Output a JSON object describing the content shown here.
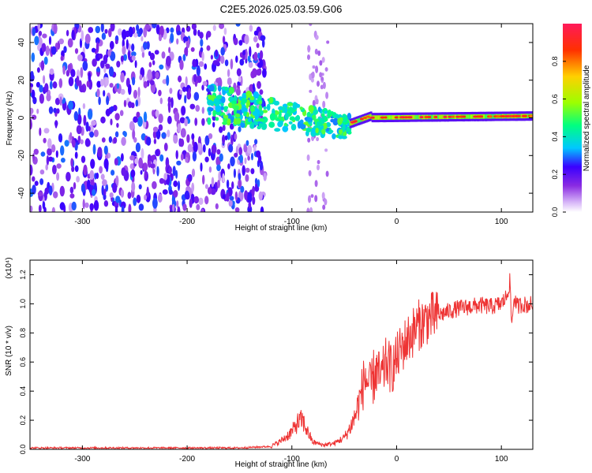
{
  "title": "C2E5.2026.025.03.59.G06",
  "chart_data": [
    {
      "type": "heatmap",
      "name": "spectrogram",
      "xlabel": "Height of straight line (km)",
      "ylabel": "Frequency (Hz)",
      "xlim": [
        -350,
        130
      ],
      "ylim": [
        -50,
        50
      ],
      "xticks": [
        -300,
        -200,
        -100,
        0,
        100
      ],
      "xtick_labels": [
        "-300",
        "-200",
        "-100",
        "0",
        "100"
      ],
      "yticks": [
        -40,
        -20,
        0,
        20,
        40
      ],
      "ytick_labels": [
        "-40",
        "-20",
        "0",
        "20",
        "40"
      ],
      "colorbar": {
        "label": "Normalized spectral amplitude",
        "range": [
          0,
          1
        ],
        "ticks": [
          0,
          0.2,
          0.4,
          0.6,
          0.8
        ],
        "tick_labels": [
          "0.0",
          "0.2",
          "0.4",
          "0.6",
          "0.8"
        ],
        "colors": [
          "#ffffff",
          "#d8b8f8",
          "#8a2be2",
          "#3a00ff",
          "#00c8ff",
          "#00ff80",
          "#9cff00",
          "#ffd000",
          "#ff3000",
          "#ff1a5a"
        ]
      },
      "regions": [
        {
          "name": "broadband noise",
          "x_range": [
            -350,
            -125
          ],
          "freq_range": [
            -50,
            50
          ],
          "amplitude": [
            0.05,
            0.3
          ]
        },
        {
          "name": "noisy line",
          "x_range": [
            -180,
            -45
          ],
          "freq_center": [
            8,
            -5
          ],
          "amplitude": [
            0.3,
            0.55
          ]
        },
        {
          "name": "narrow carrier",
          "x_range": [
            -45,
            130
          ],
          "freq_center": [
            0,
            1
          ],
          "amplitude": [
            0.5,
            0.9
          ]
        }
      ]
    },
    {
      "type": "line",
      "name": "snr",
      "xlabel": "Height of straight line (km)",
      "ylabel": "SNR (10 * v/v)",
      "multiplier": "(x10⁴)",
      "xlim": [
        -350,
        130
      ],
      "ylim": [
        0,
        1.3
      ],
      "xticks": [
        -300,
        -200,
        -100,
        0,
        100
      ],
      "xtick_labels": [
        "-300",
        "-200",
        "-100",
        "0",
        "100"
      ],
      "yticks": [
        0,
        0.2,
        0.4,
        0.6,
        0.8,
        1.0,
        1.2
      ],
      "ytick_labels": [
        "0.0",
        "0.2",
        "0.4",
        "0.6",
        "0.8",
        "1.0",
        "1.2"
      ],
      "color": "#ee3333",
      "series": [
        {
          "name": "SNR",
          "x": [
            -350,
            -300,
            -250,
            -200,
            -150,
            -120,
            -110,
            -100,
            -95,
            -90,
            -85,
            -80,
            -70,
            -60,
            -50,
            -45,
            -40,
            -35,
            -30,
            -25,
            -20,
            -15,
            -10,
            -5,
            0,
            5,
            10,
            15,
            20,
            25,
            30,
            40,
            50,
            60,
            70,
            80,
            90,
            100,
            105,
            108,
            110,
            112,
            115,
            120,
            125,
            130
          ],
          "y": [
            0.01,
            0.01,
            0.01,
            0.01,
            0.01,
            0.02,
            0.06,
            0.12,
            0.18,
            0.2,
            0.12,
            0.05,
            0.03,
            0.04,
            0.08,
            0.14,
            0.22,
            0.35,
            0.5,
            0.42,
            0.55,
            0.48,
            0.6,
            0.55,
            0.62,
            0.7,
            0.75,
            0.8,
            0.85,
            0.87,
            0.9,
            0.92,
            0.95,
            0.97,
            0.98,
            0.99,
            0.98,
            1.0,
            1.05,
            1.15,
            0.85,
            1.05,
            0.98,
            1.0,
            0.99,
            1.0
          ]
        }
      ]
    }
  ]
}
